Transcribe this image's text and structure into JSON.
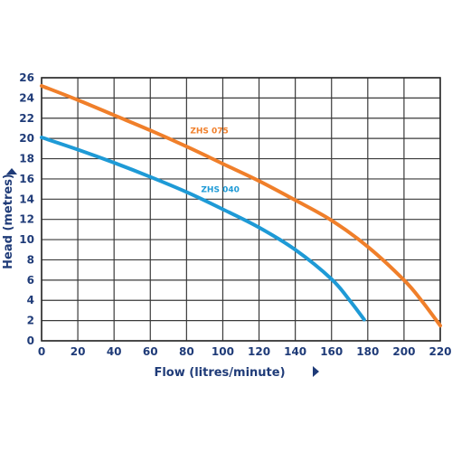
{
  "chart_data": {
    "type": "line",
    "xlabel": "Flow (litres/minute)",
    "ylabel": "Head (metres)",
    "xlim": [
      0,
      220
    ],
    "ylim": [
      0,
      26
    ],
    "xticks": [
      0,
      20,
      40,
      60,
      80,
      100,
      120,
      140,
      160,
      180,
      200,
      220
    ],
    "yticks": [
      0,
      2,
      4,
      6,
      8,
      10,
      12,
      14,
      16,
      18,
      20,
      22,
      24,
      26
    ],
    "grid": true,
    "series": [
      {
        "name": "ZHS 075",
        "color": "#f07f2a",
        "label_at": [
          82,
          20.5
        ],
        "x": [
          0,
          20,
          40,
          60,
          80,
          100,
          120,
          140,
          160,
          180,
          200,
          210,
          220
        ],
        "y": [
          25.2,
          23.8,
          22.3,
          20.8,
          19.2,
          17.5,
          15.8,
          13.9,
          11.9,
          9.3,
          6.0,
          3.9,
          1.5
        ]
      },
      {
        "name": "ZHS 040",
        "color": "#1e9ad6",
        "label_at": [
          88,
          14.7
        ],
        "x": [
          0,
          20,
          40,
          60,
          80,
          100,
          120,
          140,
          160,
          170,
          178
        ],
        "y": [
          20.1,
          18.9,
          17.6,
          16.2,
          14.7,
          13.0,
          11.2,
          9.0,
          6.1,
          4.0,
          2.1
        ]
      }
    ]
  }
}
